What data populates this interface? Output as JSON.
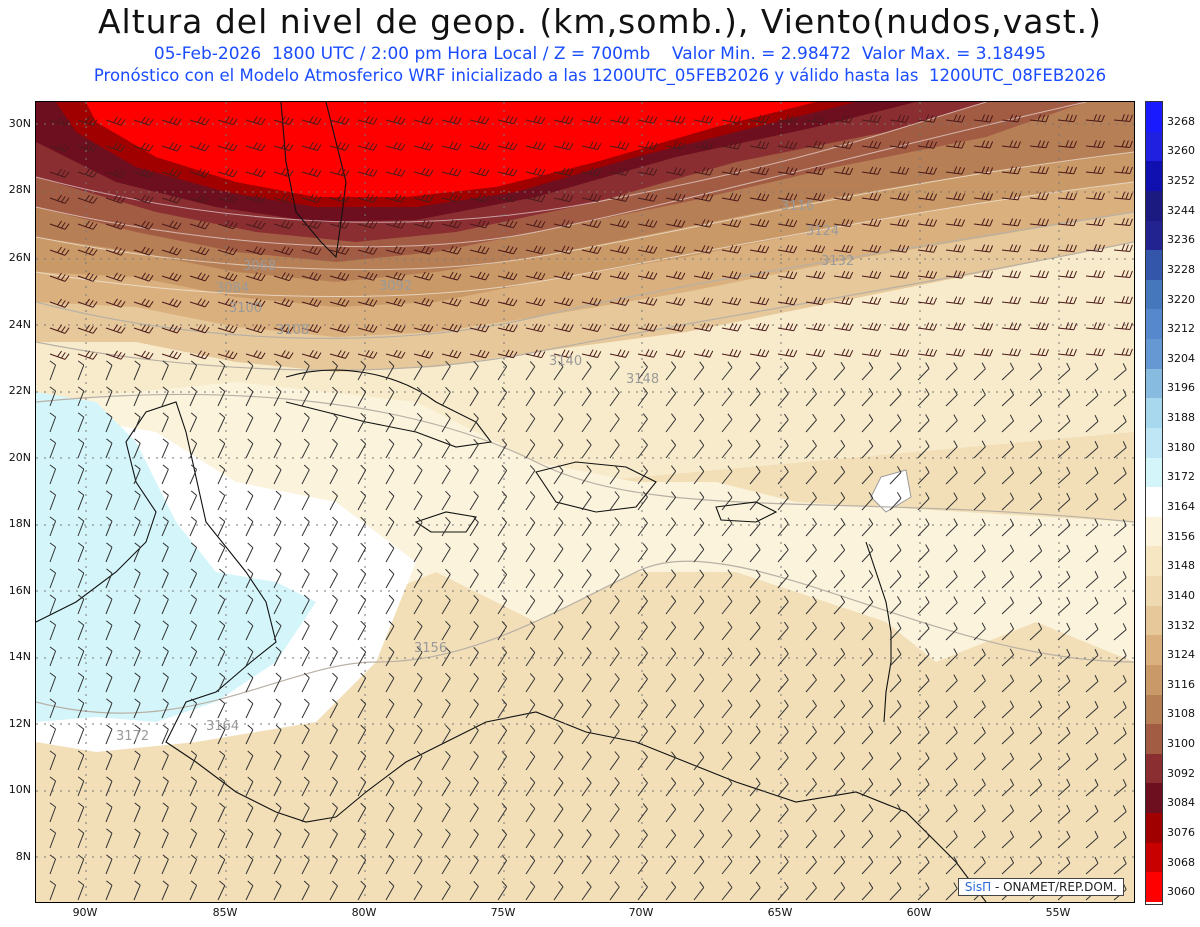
{
  "header": {
    "title": "Altura del nivel de geop. (km,somb.), Viento(nudos,vast.)",
    "line1": "05-Feb-2026  1800 UTC / 2:00 pm Hora Local / Z = 700mb    Valor Min. = 2.98472  Valor Max. = 3.18495",
    "line2": "Pronóstico con el Modelo Atmosferico WRF inicializado a las 1200UTC_05FEB2026 y válido hasta las  1200UTC_08FEB2026"
  },
  "map": {
    "lat_labels": [
      "30N",
      "28N",
      "26N",
      "24N",
      "22N",
      "20N",
      "18N",
      "16N",
      "14N",
      "12N",
      "10N",
      "8N"
    ],
    "lon_labels": [
      "90W",
      "85W",
      "80W",
      "75W",
      "70W",
      "65W",
      "60W",
      "55W"
    ],
    "contour_labels": [
      "3068",
      "3084",
      "3100",
      "3092",
      "3108",
      "3116",
      "3124",
      "3132",
      "3140",
      "3148",
      "3156",
      "3164",
      "3172"
    ],
    "credit_logo": "SisΠ",
    "credit_text": "- ONAMET/REP.DOM."
  },
  "colorbar": {
    "labels": [
      "3268",
      "3260",
      "3252",
      "3244",
      "3236",
      "3228",
      "3220",
      "3212",
      "3204",
      "3196",
      "3188",
      "3180",
      "3172",
      "3164",
      "3156",
      "3148",
      "3140",
      "3132",
      "3124",
      "3116",
      "3108",
      "3100",
      "3092",
      "3084",
      "3076",
      "3068",
      "3060"
    ],
    "colors": [
      "#1a1aff",
      "#2020e0",
      "#1010b0",
      "#1a1a80",
      "#222290",
      "#3355aa",
      "#4477bb",
      "#5588cc",
      "#6699d4",
      "#88bbe0",
      "#a8d8ee",
      "#bfe6f4",
      "#d4f6fb",
      "#ffffff",
      "#fbf3dc",
      "#f6e6c2",
      "#eed9b1",
      "#e6c89a",
      "#d9b07e",
      "#c99a68",
      "#b77f55",
      "#a35c44",
      "#8b2e32",
      "#6e0f1f",
      "#a00000",
      "#c80000",
      "#ff0000"
    ]
  }
}
